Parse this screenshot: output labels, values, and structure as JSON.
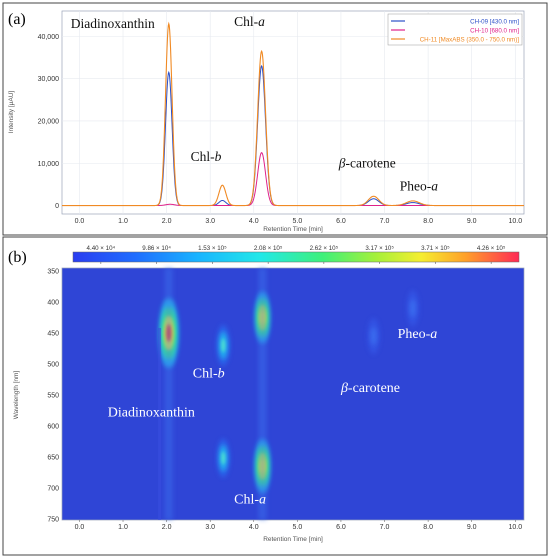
{
  "panels": {
    "a": {
      "label": "(a)"
    },
    "b": {
      "label": "(b)"
    }
  },
  "chart_data": [
    {
      "type": "line",
      "panel": "(a)",
      "xlabel": "Retention Time [min]",
      "ylabel": "Intensity [μAU]",
      "xlim": [
        -0.4,
        10.2
      ],
      "ylim": [
        -2000,
        46000
      ],
      "x_ticks": [
        "0.0",
        "1.0",
        "2.0",
        "3.0",
        "4.0",
        "5.0",
        "6.0",
        "7.0",
        "8.0",
        "9.0",
        "10.0"
      ],
      "y_ticks": [
        "0",
        "10,000",
        "20,000",
        "30,000",
        "40,000"
      ],
      "legend_position": "top-right",
      "series": [
        {
          "name": "CH-09 [430.0 nm]",
          "color": "#2b4fc8",
          "peaks": [
            [
              2.05,
              31500,
              0.075
            ],
            [
              3.28,
              1200,
              0.08
            ],
            [
              4.18,
              33000,
              0.09
            ],
            [
              6.75,
              1600,
              0.12
            ],
            [
              7.65,
              700,
              0.15
            ]
          ]
        },
        {
          "name": "CH-10 [680.0 nm]",
          "color": "#e0218a",
          "peaks": [
            [
              2.08,
              300,
              0.1
            ],
            [
              4.18,
              12500,
              0.09
            ]
          ]
        },
        {
          "name": "CH-11 [MaxABS (350.0 - 750.0 nm)]",
          "color": "#f08a24",
          "peaks": [
            [
              2.05,
              43000,
              0.075
            ],
            [
              3.28,
              4800,
              0.08
            ],
            [
              4.18,
              36500,
              0.09
            ],
            [
              6.75,
              2200,
              0.12
            ],
            [
              7.65,
              1100,
              0.15
            ]
          ]
        }
      ],
      "annotations": [
        {
          "text": "Diadinoxanthin",
          "x": -0.2,
          "y": 42000
        },
        {
          "text": "Chl-",
          "italic": "a",
          "x": 3.55,
          "y": 42400
        },
        {
          "text": "Chl-",
          "italic": "b",
          "x": 2.55,
          "y": 10500
        },
        {
          "text": "β",
          "rest": "-carotene",
          "x": 5.95,
          "y": 9000
        },
        {
          "text": "Pheo-",
          "italic": "a",
          "x": 7.35,
          "y": 3500
        }
      ]
    },
    {
      "type": "heatmap",
      "panel": "(b)",
      "xlabel": "Retention Time [min]",
      "ylabel": "Wavelength [nm]",
      "xlim": [
        -0.4,
        10.2
      ],
      "ylim": [
        345,
        752
      ],
      "x_ticks": [
        "0.0",
        "1.0",
        "2.0",
        "3.0",
        "4.0",
        "5.0",
        "6.0",
        "7.0",
        "8.0",
        "9.0",
        "10.0"
      ],
      "y_ticks": [
        "350",
        "400",
        "450",
        "500",
        "550",
        "600",
        "650",
        "700",
        "750"
      ],
      "colorbar_ticks": [
        "4.40 × 10⁴",
        "9.86 × 10⁴",
        "1.53 × 10⁵",
        "2.08 × 10⁵",
        "2.62 × 10⁵",
        "3.17 × 10⁵",
        "3.71 × 10⁵",
        "4.26 × 10⁵"
      ],
      "spots": [
        {
          "x": 2.05,
          "y": 450,
          "level": 0.95
        },
        {
          "x": 4.2,
          "y": 425,
          "level": 0.55
        },
        {
          "x": 4.2,
          "y": 665,
          "level": 0.6
        },
        {
          "x": 3.3,
          "y": 470,
          "level": 0.3
        },
        {
          "x": 3.3,
          "y": 652,
          "level": 0.25
        },
        {
          "x": 6.75,
          "y": 455,
          "level": 0.18
        },
        {
          "x": 7.65,
          "y": 410,
          "level": 0.18
        }
      ],
      "annotations": [
        {
          "text": "Pheo-",
          "italic": "a",
          "x": 7.3,
          "y": 458
        },
        {
          "text": "Chl-",
          "italic": "b",
          "x": 2.6,
          "y": 522
        },
        {
          "text": "β",
          "rest": "-carotene",
          "x": 6.0,
          "y": 545
        },
        {
          "text": "Diadinoxanthin",
          "x": 0.65,
          "y": 585
        },
        {
          "text": "Chl-",
          "italic": "a",
          "x": 3.55,
          "y": 725
        }
      ]
    }
  ]
}
